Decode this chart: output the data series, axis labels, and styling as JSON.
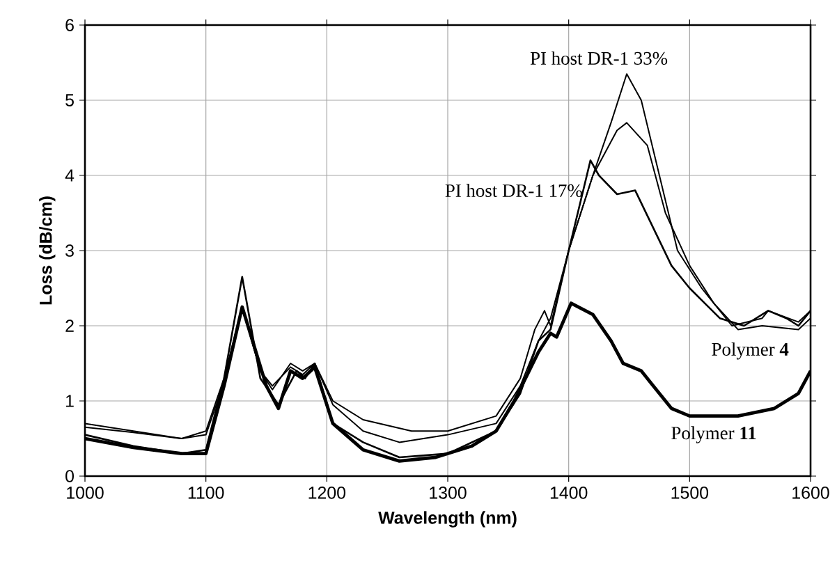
{
  "chart_data": {
    "type": "line",
    "xlabel": "Wavelength (nm)",
    "ylabel": "Loss (dB/cm)",
    "xlim": [
      1000,
      1600
    ],
    "xticks": [
      1000,
      1100,
      1200,
      1300,
      1400,
      1500,
      1600
    ],
    "ylim": [
      0,
      6
    ],
    "yticks": [
      0,
      1,
      2,
      3,
      4,
      5,
      6
    ],
    "grid": true,
    "marker": "none",
    "line_style": "solid",
    "series": [
      {
        "name": "PI host DR-1 33%",
        "color": "#000000",
        "x": [
          1000,
          1040,
          1080,
          1100,
          1115,
          1130,
          1145,
          1155,
          1170,
          1180,
          1190,
          1205,
          1230,
          1270,
          1300,
          1340,
          1360,
          1372,
          1380,
          1385,
          1400,
          1420,
          1435,
          1448,
          1460,
          1475,
          1490,
          1510,
          1535,
          1560,
          1565,
          1590,
          1600
        ],
        "values": [
          0.7,
          0.6,
          0.5,
          0.6,
          1.3,
          2.25,
          1.4,
          1.15,
          1.5,
          1.4,
          1.5,
          1.0,
          0.75,
          0.6,
          0.6,
          0.8,
          1.3,
          1.95,
          2.2,
          2.0,
          3.0,
          4.0,
          4.7,
          5.35,
          5.0,
          4.0,
          3.0,
          2.5,
          2.0,
          2.1,
          2.2,
          2.05,
          2.2
        ]
      },
      {
        "name": "PI host DR-1 17%",
        "color": "#000000",
        "x": [
          1000,
          1040,
          1080,
          1100,
          1115,
          1130,
          1145,
          1155,
          1170,
          1180,
          1190,
          1205,
          1230,
          1260,
          1300,
          1340,
          1360,
          1375,
          1385,
          1400,
          1420,
          1440,
          1448,
          1465,
          1480,
          1500,
          1520,
          1540,
          1560,
          1590,
          1600
        ],
        "values": [
          0.65,
          0.58,
          0.5,
          0.55,
          1.25,
          2.25,
          1.4,
          1.2,
          1.45,
          1.35,
          1.5,
          0.95,
          0.6,
          0.45,
          0.55,
          0.7,
          1.2,
          1.8,
          2.1,
          3.0,
          4.0,
          4.6,
          4.7,
          4.4,
          3.5,
          2.8,
          2.3,
          1.95,
          2.0,
          1.95,
          2.1
        ]
      },
      {
        "name": "Polymer **4**",
        "color": "#000000",
        "x": [
          1000,
          1040,
          1080,
          1100,
          1115,
          1130,
          1145,
          1160,
          1175,
          1182,
          1190,
          1205,
          1230,
          1260,
          1300,
          1340,
          1360,
          1375,
          1385,
          1400,
          1418,
          1425,
          1440,
          1455,
          1470,
          1485,
          1500,
          1525,
          1545,
          1565,
          1580,
          1590,
          1600
        ],
        "values": [
          0.55,
          0.4,
          0.3,
          0.35,
          1.3,
          2.65,
          1.3,
          0.95,
          1.4,
          1.3,
          1.5,
          0.7,
          0.45,
          0.25,
          0.3,
          0.6,
          1.1,
          1.8,
          1.95,
          3.0,
          4.2,
          4.0,
          3.75,
          3.8,
          3.3,
          2.8,
          2.5,
          2.1,
          2.0,
          2.2,
          2.1,
          2.0,
          2.2
        ]
      },
      {
        "name": "Polymer **11**",
        "color": "#000000",
        "x": [
          1000,
          1040,
          1080,
          1100,
          1115,
          1130,
          1150,
          1160,
          1170,
          1180,
          1190,
          1205,
          1230,
          1260,
          1290,
          1320,
          1340,
          1355,
          1375,
          1385,
          1390,
          1402,
          1420,
          1435,
          1445,
          1460,
          1470,
          1485,
          1500,
          1540,
          1570,
          1590,
          1600
        ],
        "values": [
          0.5,
          0.38,
          0.3,
          0.3,
          1.2,
          2.25,
          1.2,
          0.9,
          1.4,
          1.3,
          1.45,
          0.7,
          0.35,
          0.2,
          0.25,
          0.4,
          0.6,
          1.0,
          1.65,
          1.9,
          1.85,
          2.3,
          2.15,
          1.8,
          1.5,
          1.4,
          1.2,
          0.9,
          0.8,
          0.8,
          0.9,
          1.1,
          1.4
        ]
      }
    ]
  }
}
